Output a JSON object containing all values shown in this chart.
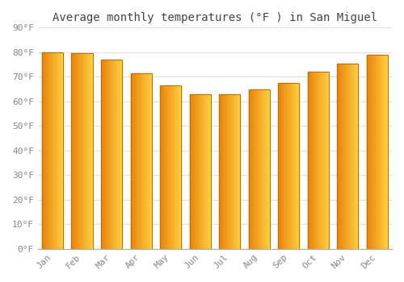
{
  "title": "Average monthly temperatures (°F ) in San Miguel",
  "months": [
    "Jan",
    "Feb",
    "Mar",
    "Apr",
    "May",
    "Jun",
    "Jul",
    "Aug",
    "Sep",
    "Oct",
    "Nov",
    "Dec"
  ],
  "values": [
    80,
    79.5,
    77,
    71.5,
    66.5,
    63,
    63,
    65,
    67.5,
    72,
    75.5,
    79
  ],
  "ylim": [
    0,
    90
  ],
  "yticks": [
    0,
    10,
    20,
    30,
    40,
    50,
    60,
    70,
    80,
    90
  ],
  "ylabel_format": "°F",
  "background_color": "#FFFFFF",
  "grid_color": "#E0E0E0",
  "bar_color_left": "#E8820A",
  "bar_color_right": "#FFD040",
  "bar_border_color": "#B87010",
  "font_family": "monospace",
  "title_fontsize": 10,
  "tick_fontsize": 8,
  "bar_width": 0.72
}
